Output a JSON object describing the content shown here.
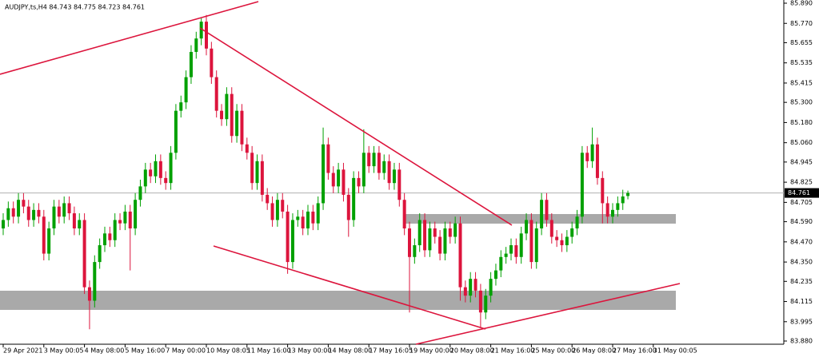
{
  "chart_data": {
    "type": "candlestick",
    "title": "AUDJPY,ts,H4  84.743 84.775 84.723 84.761",
    "bull_color": "#00a000",
    "bear_color": "#dc143c",
    "ylim": [
      83.861,
      85.909
    ],
    "yticks": [
      {
        "value": 85.89,
        "label": "85.890"
      },
      {
        "value": 85.77,
        "label": "85.770"
      },
      85.655,
      85.535,
      85.415,
      {
        "value": 85.3,
        "label": "85.300"
      },
      {
        "value": 85.18,
        "label": "85.180"
      },
      {
        "value": 85.06,
        "label": "85.060"
      },
      84.945,
      84.825,
      84.705,
      {
        "value": 84.59,
        "label": "84.590"
      },
      {
        "value": 84.47,
        "label": "84.470"
      },
      {
        "value": 84.35,
        "label": "84.350"
      },
      84.235,
      84.115,
      83.995,
      {
        "value": 83.88,
        "label": "83.880"
      }
    ],
    "categories": [
      "29 Apr 2021",
      null,
      null,
      null,
      null,
      null,
      null,
      null,
      "3 May 00:05",
      null,
      null,
      null,
      null,
      null,
      null,
      null,
      "4 May 08:00",
      null,
      null,
      null,
      null,
      null,
      null,
      null,
      "5 May 16:00",
      null,
      null,
      null,
      null,
      null,
      null,
      null,
      "7 May 00:00",
      null,
      null,
      null,
      null,
      null,
      null,
      null,
      "10 May 08:05",
      null,
      null,
      null,
      null,
      null,
      null,
      null,
      "11 May 16:00",
      null,
      null,
      null,
      null,
      null,
      null,
      null,
      "13 May 00:00",
      null,
      null,
      null,
      null,
      null,
      null,
      null,
      "14 May 08:00",
      null,
      null,
      null,
      null,
      null,
      null,
      null,
      "17 May 16:05",
      null,
      null,
      null,
      null,
      null,
      null,
      null,
      "19 May 00:00",
      null,
      null,
      null,
      null,
      null,
      null,
      null,
      "20 May 08:00",
      null,
      null,
      null,
      null,
      null,
      null,
      null,
      "21 May 16:00",
      null,
      null,
      null,
      null,
      null,
      null,
      null,
      "25 May 00:00",
      null,
      null,
      null,
      null,
      null,
      null,
      null,
      "26 May 08:00",
      null,
      null,
      null,
      null,
      null,
      null,
      null,
      "27 May 16:00",
      null,
      null,
      null,
      null,
      null,
      null,
      null,
      "31 May 00:05",
      null,
      null,
      null
    ],
    "ohlc": [
      [
        84.55,
        84.64,
        84.51,
        84.6
      ],
      [
        84.6,
        84.71,
        84.56,
        84.67
      ],
      [
        84.67,
        84.71,
        84.58,
        84.62
      ],
      [
        84.62,
        84.76,
        84.58,
        84.72
      ],
      [
        84.72,
        84.76,
        84.64,
        84.68
      ],
      [
        84.68,
        84.72,
        84.56,
        84.6
      ],
      [
        84.6,
        84.7,
        84.56,
        84.66
      ],
      [
        84.66,
        84.7,
        84.58,
        84.62
      ],
      [
        84.62,
        84.66,
        84.36,
        84.4
      ],
      [
        84.4,
        84.59,
        84.36,
        84.55
      ],
      [
        84.55,
        84.72,
        84.51,
        84.68
      ],
      [
        84.68,
        84.72,
        84.58,
        84.62
      ],
      [
        84.62,
        84.74,
        84.58,
        84.7
      ],
      [
        84.7,
        84.74,
        84.6,
        84.64
      ],
      [
        84.64,
        84.68,
        84.51,
        84.55
      ],
      [
        84.55,
        84.64,
        84.51,
        84.6
      ],
      [
        84.6,
        84.64,
        84.16,
        84.2
      ],
      [
        84.2,
        84.24,
        83.95,
        84.12
      ],
      [
        84.12,
        84.39,
        84.08,
        84.35
      ],
      [
        84.35,
        84.49,
        84.31,
        84.45
      ],
      [
        84.45,
        84.56,
        84.41,
        84.52
      ],
      [
        84.52,
        84.56,
        84.44,
        84.48
      ],
      [
        84.48,
        84.64,
        84.44,
        84.6
      ],
      [
        84.6,
        84.64,
        84.54,
        84.58
      ],
      [
        84.58,
        84.69,
        84.54,
        84.65
      ],
      [
        84.65,
        84.69,
        84.3,
        84.55
      ],
      [
        84.55,
        84.76,
        84.51,
        84.72
      ],
      [
        84.72,
        84.84,
        84.68,
        84.8
      ],
      [
        84.8,
        84.94,
        84.76,
        84.9
      ],
      [
        84.9,
        84.94,
        84.82,
        84.86
      ],
      [
        84.86,
        84.99,
        84.82,
        84.95
      ],
      [
        84.95,
        84.99,
        84.81,
        84.85
      ],
      [
        84.85,
        84.89,
        84.78,
        84.82
      ],
      [
        84.82,
        85.04,
        84.78,
        85.0
      ],
      [
        85.0,
        85.29,
        84.96,
        85.25
      ],
      [
        85.25,
        85.34,
        85.21,
        85.3
      ],
      [
        85.3,
        85.49,
        85.26,
        85.45
      ],
      [
        85.45,
        85.64,
        85.41,
        85.6
      ],
      [
        85.6,
        85.72,
        85.56,
        85.68
      ],
      [
        85.68,
        85.8,
        85.64,
        85.78
      ],
      [
        85.78,
        85.82,
        85.58,
        85.62
      ],
      [
        85.62,
        85.66,
        85.41,
        85.45
      ],
      [
        85.45,
        85.49,
        85.21,
        85.25
      ],
      [
        85.25,
        85.29,
        85.16,
        85.2
      ],
      [
        85.2,
        85.39,
        85.16,
        85.35
      ],
      [
        85.35,
        85.39,
        85.06,
        85.1
      ],
      [
        85.1,
        85.29,
        85.06,
        85.25
      ],
      [
        85.25,
        85.29,
        85.01,
        85.05
      ],
      [
        85.05,
        85.09,
        84.96,
        85.0
      ],
      [
        85.0,
        85.04,
        84.78,
        84.82
      ],
      [
        84.82,
        84.99,
        84.78,
        84.95
      ],
      [
        84.95,
        84.99,
        84.71,
        84.75
      ],
      [
        84.75,
        84.79,
        84.66,
        84.7
      ],
      [
        84.7,
        84.74,
        84.56,
        84.6
      ],
      [
        84.6,
        84.76,
        84.56,
        84.72
      ],
      [
        84.72,
        84.76,
        84.61,
        84.65
      ],
      [
        84.65,
        84.69,
        84.28,
        84.35
      ],
      [
        84.35,
        84.64,
        84.31,
        84.6
      ],
      [
        84.6,
        84.66,
        84.56,
        84.62
      ],
      [
        84.62,
        84.66,
        84.51,
        84.55
      ],
      [
        84.55,
        84.69,
        84.51,
        84.65
      ],
      [
        84.65,
        84.69,
        84.54,
        84.58
      ],
      [
        84.58,
        84.74,
        84.54,
        84.7
      ],
      [
        84.7,
        85.15,
        84.66,
        85.05
      ],
      [
        85.05,
        85.09,
        84.84,
        84.88
      ],
      [
        84.88,
        84.92,
        84.76,
        84.8
      ],
      [
        84.8,
        84.94,
        84.76,
        84.9
      ],
      [
        84.9,
        84.94,
        84.71,
        84.75
      ],
      [
        84.75,
        84.79,
        84.5,
        84.6
      ],
      [
        84.6,
        84.89,
        84.56,
        84.85
      ],
      [
        84.85,
        84.89,
        84.76,
        84.8
      ],
      [
        84.8,
        85.14,
        84.76,
        85.0
      ],
      [
        85.0,
        85.04,
        84.88,
        84.92
      ],
      [
        84.92,
        85.04,
        84.88,
        85.0
      ],
      [
        85.0,
        85.04,
        84.84,
        84.88
      ],
      [
        84.88,
        84.99,
        84.84,
        84.95
      ],
      [
        84.95,
        84.99,
        84.78,
        84.82
      ],
      [
        84.82,
        84.94,
        84.78,
        84.9
      ],
      [
        84.9,
        84.94,
        84.68,
        84.72
      ],
      [
        84.72,
        84.76,
        84.51,
        84.55
      ],
      [
        84.55,
        84.59,
        84.05,
        84.38
      ],
      [
        84.38,
        84.49,
        84.34,
        84.45
      ],
      [
        84.45,
        84.64,
        84.41,
        84.6
      ],
      [
        84.6,
        84.64,
        84.38,
        84.42
      ],
      [
        84.42,
        84.59,
        84.38,
        84.55
      ],
      [
        84.55,
        84.59,
        84.46,
        84.5
      ],
      [
        84.5,
        84.54,
        84.36,
        84.4
      ],
      [
        84.4,
        84.59,
        84.36,
        84.55
      ],
      [
        84.55,
        84.59,
        84.46,
        84.5
      ],
      [
        84.5,
        84.62,
        84.46,
        84.58
      ],
      [
        84.58,
        84.62,
        84.12,
        84.2
      ],
      [
        84.2,
        84.24,
        84.11,
        84.15
      ],
      [
        84.15,
        84.29,
        84.11,
        84.25
      ],
      [
        84.25,
        84.29,
        84.14,
        84.18
      ],
      [
        84.18,
        84.22,
        83.96,
        84.05
      ],
      [
        84.05,
        84.19,
        84.01,
        84.15
      ],
      [
        84.15,
        84.29,
        84.11,
        84.25
      ],
      [
        84.25,
        84.34,
        84.21,
        84.3
      ],
      [
        84.3,
        84.42,
        84.26,
        84.38
      ],
      [
        84.38,
        84.44,
        84.34,
        84.4
      ],
      [
        84.4,
        84.49,
        84.36,
        84.45
      ],
      [
        84.45,
        84.49,
        84.34,
        84.38
      ],
      [
        84.38,
        84.56,
        84.34,
        84.52
      ],
      [
        84.52,
        84.64,
        84.48,
        84.6
      ],
      [
        84.6,
        84.64,
        84.31,
        84.35
      ],
      [
        84.35,
        84.59,
        84.31,
        84.55
      ],
      [
        84.55,
        84.76,
        84.51,
        84.72
      ],
      [
        84.72,
        84.76,
        84.56,
        84.6
      ],
      [
        84.6,
        84.64,
        84.46,
        84.5
      ],
      [
        84.5,
        84.54,
        84.44,
        84.48
      ],
      [
        84.48,
        84.52,
        84.41,
        84.45
      ],
      [
        84.45,
        84.54,
        84.41,
        84.5
      ],
      [
        84.5,
        84.59,
        84.46,
        84.55
      ],
      [
        84.55,
        84.66,
        84.51,
        84.62
      ],
      [
        84.62,
        85.04,
        84.58,
        85.0
      ],
      [
        85.0,
        85.04,
        84.91,
        84.95
      ],
      [
        84.95,
        85.15,
        84.91,
        85.05
      ],
      [
        85.05,
        85.09,
        84.81,
        84.85
      ],
      [
        84.85,
        84.89,
        84.58,
        84.7
      ],
      [
        84.7,
        84.74,
        84.58,
        84.62
      ],
      [
        84.62,
        84.7,
        84.58,
        84.66
      ],
      [
        84.66,
        84.74,
        84.62,
        84.7
      ],
      [
        84.7,
        84.78,
        84.66,
        84.74
      ],
      [
        84.743,
        84.775,
        84.723,
        84.761
      ]
    ]
  }
}
